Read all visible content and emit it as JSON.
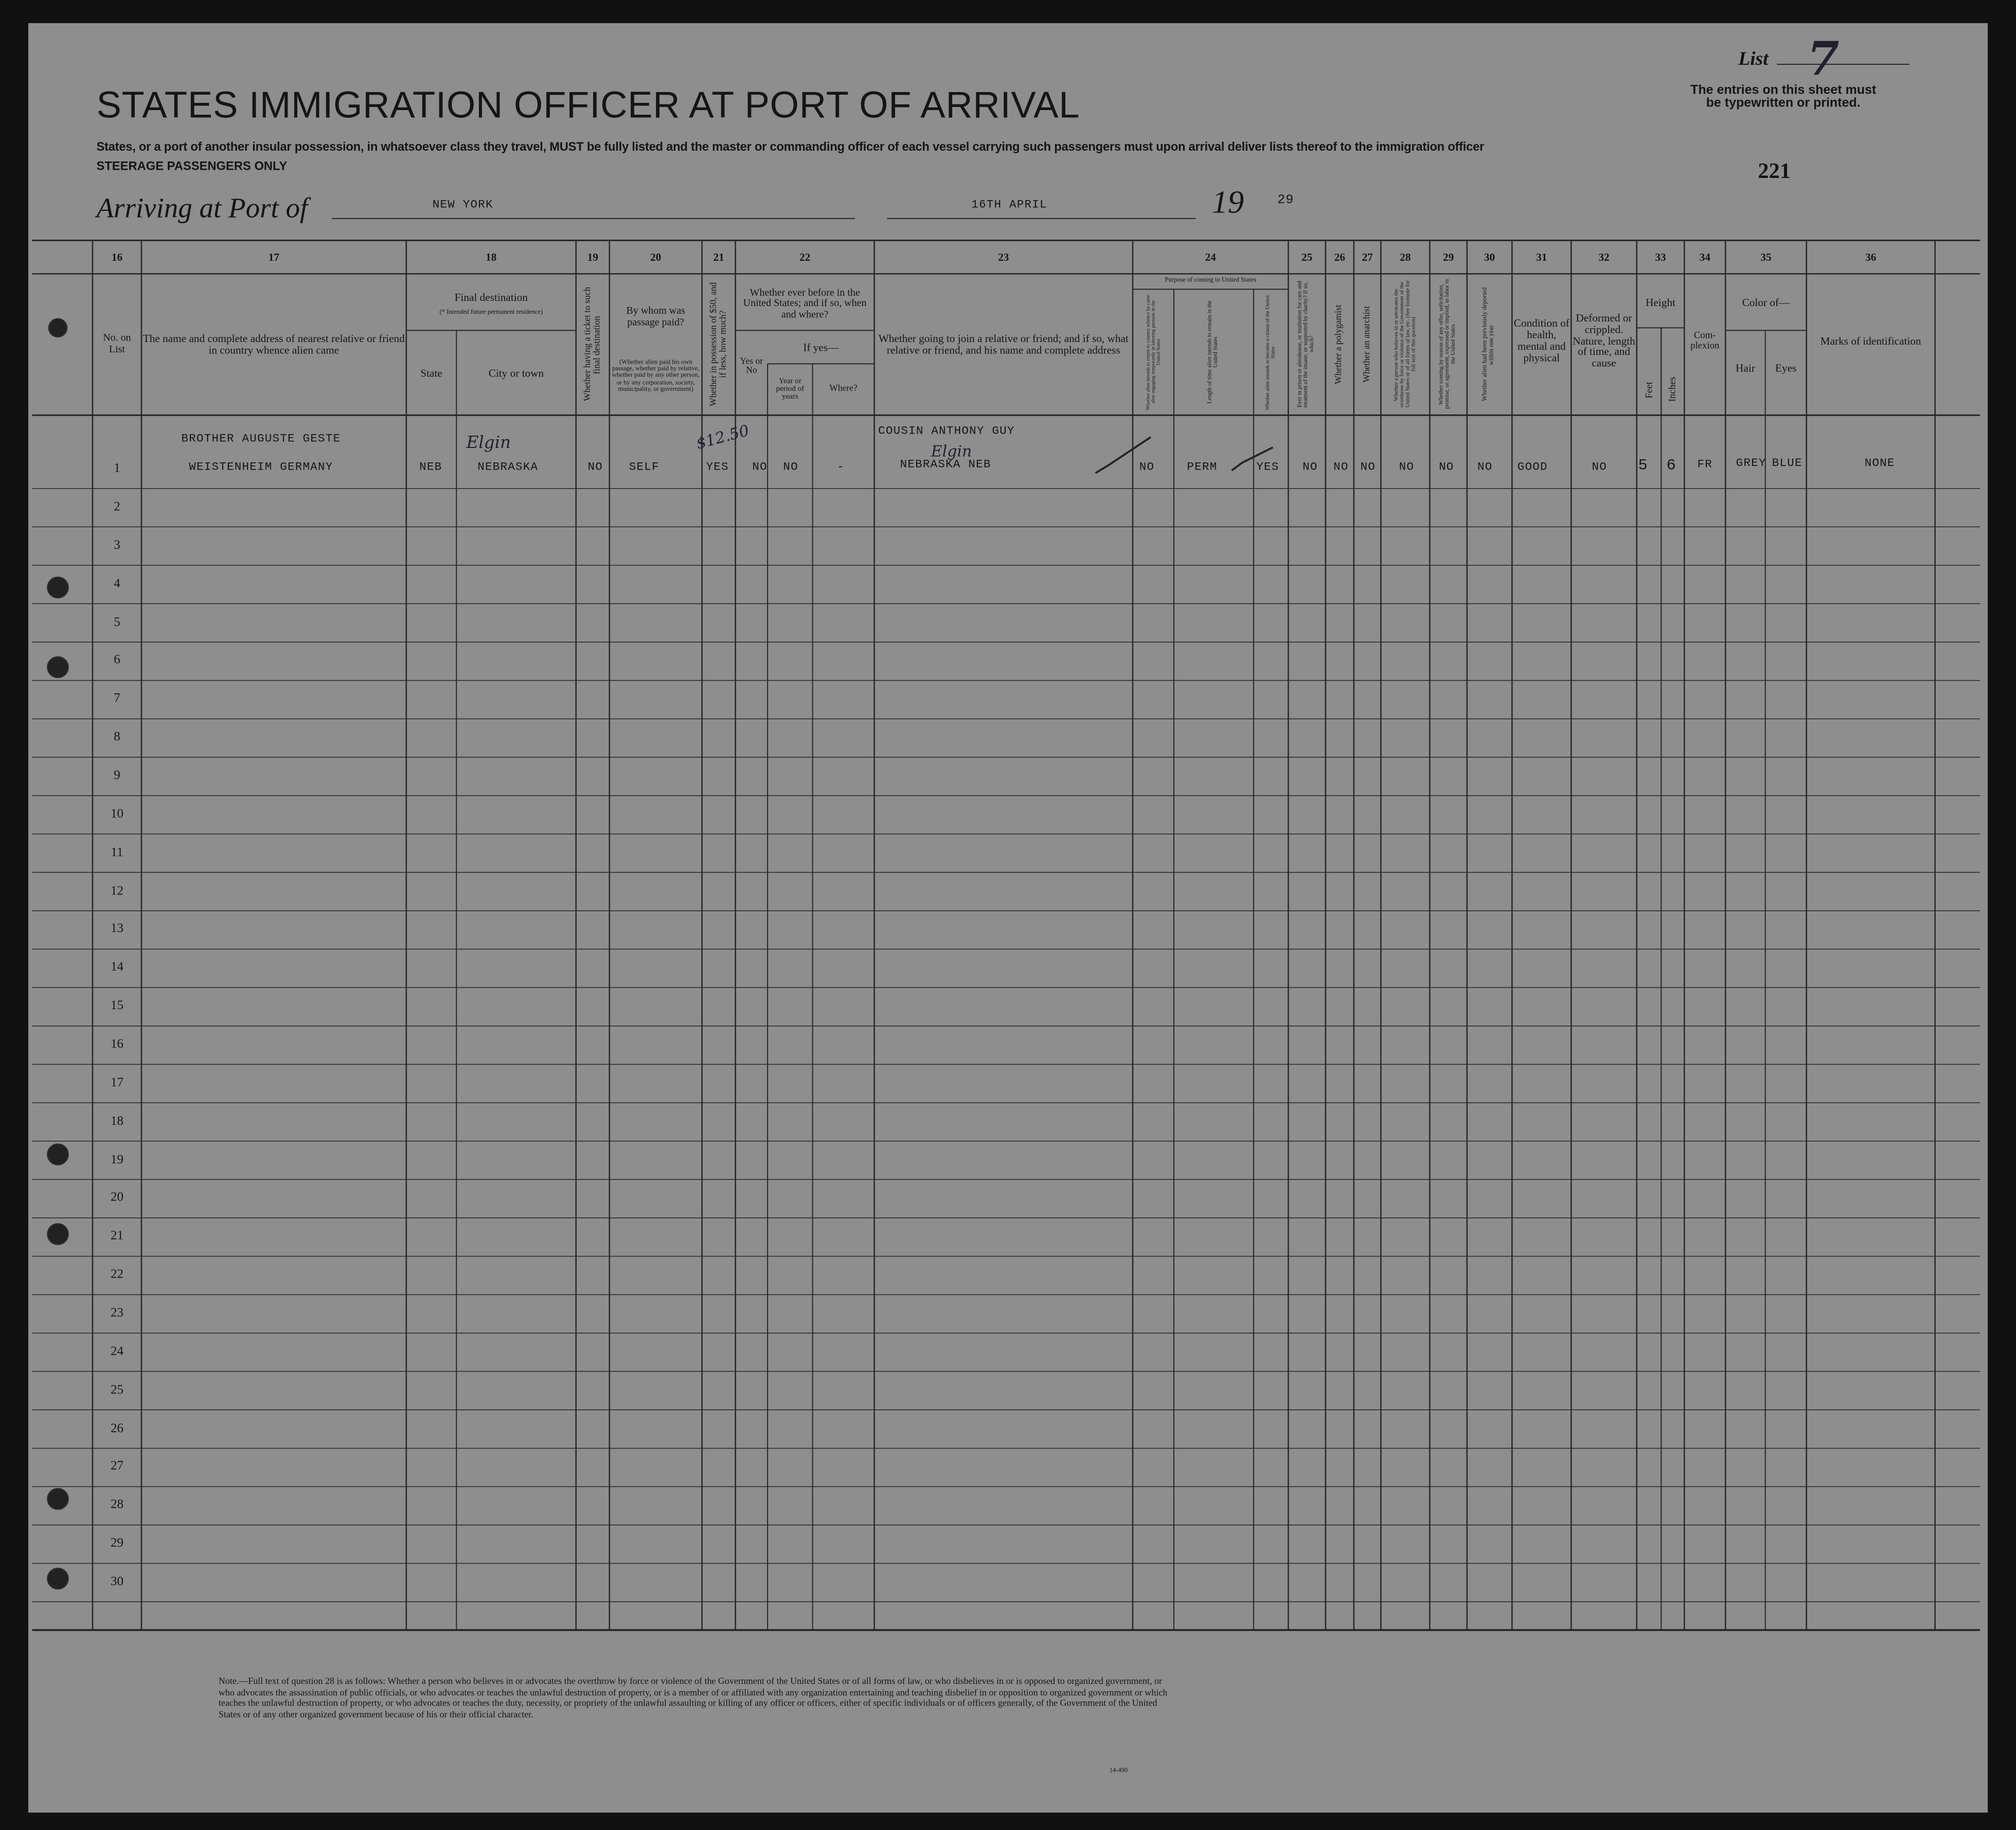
{
  "header": {
    "list_label": "List",
    "list_number": "7",
    "entries_note": "The entries on this sheet must be typewritten or printed.",
    "title": "STATES IMMIGRATION OFFICER AT PORT OF ARRIVAL",
    "instructions": "States, or a port of another insular possession, in whatsoever class they travel, MUST be fully listed and the master or commanding officer of each vessel carrying such passengers must upon arrival deliver lists thereof to the immigration officer",
    "class": "STEERAGE PASSENGERS ONLY",
    "sheet_number": "221",
    "arriving_label": "Arriving at Port of",
    "port": "NEW YORK",
    "date": "16TH APRIL",
    "year_prefix": "19",
    "year": "29"
  },
  "columns": [
    {
      "number": "16",
      "heading": "No. on List"
    },
    {
      "number": "17",
      "heading": "The name and complete address of nearest relative or friend in country whence alien came"
    },
    {
      "number": "18",
      "heading": "Final destination",
      "note": "(* Intended future permanent residence)",
      "subheadings": [
        "State",
        "City or town"
      ]
    },
    {
      "number": "19",
      "heading": "Whether having a ticket to such final destination"
    },
    {
      "number": "20",
      "heading": "By whom was passage paid?",
      "note": "(Whether alien paid his own passage, whether paid by relative, whether paid by any other person, or by any corporation, society, municipality, or government)"
    },
    {
      "number": "21",
      "heading": "Whether in possession of $50, and if less, how much?"
    },
    {
      "number": "22",
      "heading": "Whether ever before in the United States; and if so, when and where?",
      "subheadings": [
        "Yes or No",
        "If yes—",
        "Year or period of years",
        "Where?"
      ]
    },
    {
      "number": "23",
      "heading": "Whether going to join a relative or friend; and if so, what relative or friend, and his name and complete address"
    },
    {
      "number": "24",
      "heading": "Purpose of coming to United States",
      "subheadings": [
        "Whether alien intends to return to country whence he came after engaging temporarily in laboring pursuits in the United States",
        "Length of time alien intends to remain in the United States",
        "Whether alien intends to become a citizen of the United States"
      ]
    },
    {
      "number": "25",
      "heading": "Ever in prison or almshouse, or institution for care and treatment of the insane, or supported by charity? If so, which?"
    },
    {
      "number": "26",
      "heading": "Whether a polygamist"
    },
    {
      "number": "27",
      "heading": "Whether an anarchist"
    },
    {
      "number": "28",
      "heading": "Whether a person who believes in or advocates the overthrow by force or violence of the Government of the United States or of all forms of law, etc. (See footnote for full text of this question)"
    },
    {
      "number": "29",
      "heading": "Whether coming by reason of any offer, solicitation, promise, or agreement, expressed or implied, to labor in the United States"
    },
    {
      "number": "30",
      "heading": "Whether alien had been previously deported within one year"
    },
    {
      "number": "31",
      "heading": "Condition of health, mental and physical"
    },
    {
      "number": "32",
      "heading": "Deformed or crippled. Nature, length of time, and cause"
    },
    {
      "number": "33",
      "heading": "Height",
      "subheadings": [
        "Feet",
        "Inches"
      ]
    },
    {
      "number": "34",
      "heading": "Com-plexion"
    },
    {
      "number": "35",
      "heading": "Color of—",
      "subheadings": [
        "Hair",
        "Eyes"
      ]
    },
    {
      "number": "36",
      "heading": "Marks of identification"
    }
  ],
  "rows": [
    {
      "number": "1",
      "relative_name": "BROTHER AUGUSTE GESTE",
      "relative_address": "WEISTENHEIM GERMANY",
      "state": "NEB",
      "city": "NEBRASKA",
      "city_handwritten": "Elgin",
      "ticket": "NO",
      "passage_paid_by": "SELF",
      "money": "YES",
      "money_handwritten": "$12.50",
      "before_in_us": "NO",
      "period": "NO",
      "where": "-",
      "join_name": "COUSIN ANTHONY GUY",
      "join_address": "NEBRASKA NEB",
      "join_handwritten": "Elgin",
      "return": "NO",
      "length_of_stay": "PERM",
      "citizen": "YES",
      "prison": "NO",
      "polygamist": "NO",
      "anarchist": "NO",
      "overthrow": "NO",
      "labor_offer": "NO",
      "deported": "NO",
      "health": "GOOD",
      "deformed": "NO",
      "height_feet": "5",
      "height_inches": "6",
      "complexion": "FR",
      "hair": "GREY",
      "eyes": "BLUE",
      "marks": "NONE"
    },
    {
      "number": "2"
    },
    {
      "number": "3"
    },
    {
      "number": "4"
    },
    {
      "number": "5"
    },
    {
      "number": "6"
    },
    {
      "number": "7"
    },
    {
      "number": "8"
    },
    {
      "number": "9"
    },
    {
      "number": "10"
    },
    {
      "number": "11"
    },
    {
      "number": "12"
    },
    {
      "number": "13"
    },
    {
      "number": "14"
    },
    {
      "number": "15"
    },
    {
      "number": "16"
    },
    {
      "number": "17"
    },
    {
      "number": "18"
    },
    {
      "number": "19"
    },
    {
      "number": "20"
    },
    {
      "number": "21"
    },
    {
      "number": "22"
    },
    {
      "number": "23"
    },
    {
      "number": "24"
    },
    {
      "number": "25"
    },
    {
      "number": "26"
    },
    {
      "number": "27"
    },
    {
      "number": "28"
    },
    {
      "number": "29"
    },
    {
      "number": "30"
    }
  ],
  "footnote": "Note.—Full text of question 28 is as follows: Whether a person who believes in or advocates the overthrow by force or violence of the Government of the United States or of all forms of law, or who disbelieves in or is opposed to organized government, or who advocates the assassination of public officials, or who advocates or teaches the unlawful destruction of property, or is a member of or affiliated with any organization entertaining and teaching disbelief in or opposition to organized government or which teaches the unlawful destruction of property, or who advocates or teaches the duty, necessity, or propriety of the unlawful assaulting or killing of any officer or officers, either of specific individuals or of officers generally, of the Government of the United States or of any other organized government because of his or their official character.",
  "footnote_code": "14-490"
}
